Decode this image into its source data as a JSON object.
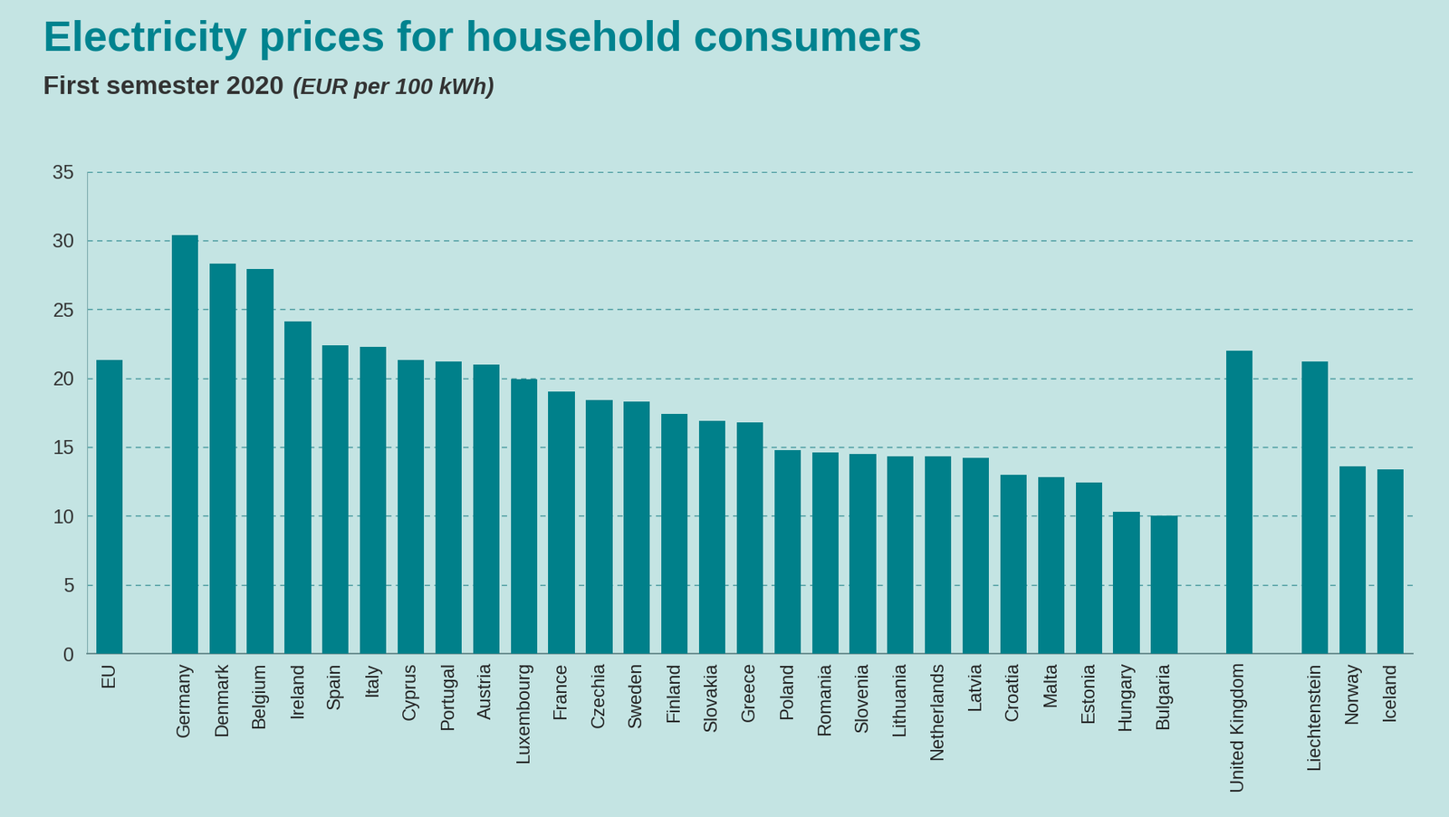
{
  "chart_data": {
    "type": "bar",
    "title": "Electricity prices for household consumers",
    "subtitle": "First semester 2020",
    "unit": "(EUR per 100 kWh)",
    "categories": [
      "EU",
      null,
      "Germany",
      "Denmark",
      "Belgium",
      "Ireland",
      "Spain",
      "Italy",
      "Cyprus",
      "Portugal",
      "Austria",
      "Luxembourg",
      "France",
      "Czechia",
      "Sweden",
      "Finland",
      "Slovakia",
      "Greece",
      "Poland",
      "Romania",
      "Slovenia",
      "Lithuania",
      "Netherlands",
      "Latvia",
      "Croatia",
      "Malta",
      "Estonia",
      "Hungary",
      "Bulgaria",
      null,
      "United Kingdom",
      null,
      "Liechtenstein",
      "Norway",
      "Iceland"
    ],
    "values": [
      21.3,
      null,
      30.4,
      28.3,
      27.9,
      24.1,
      22.4,
      22.3,
      21.3,
      21.2,
      21.0,
      19.9,
      19.0,
      18.4,
      18.3,
      17.4,
      16.9,
      16.8,
      14.8,
      14.6,
      14.5,
      14.3,
      14.3,
      14.2,
      13.0,
      12.8,
      12.4,
      10.3,
      10.0,
      null,
      22.0,
      null,
      21.2,
      13.6,
      13.4
    ],
    "color": "#00808a",
    "ylim": [
      0,
      35
    ],
    "yticks": [
      0,
      5,
      10,
      15,
      20,
      25,
      30,
      35
    ],
    "grid": true
  }
}
